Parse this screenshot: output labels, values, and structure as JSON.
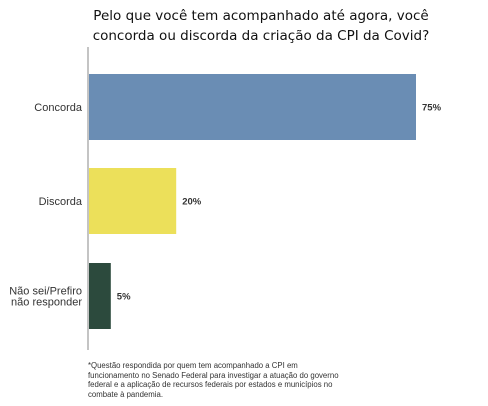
{
  "chart_data": {
    "type": "bar",
    "orientation": "horizontal",
    "title_lines": [
      "Pelo que você tem acompanhado até agora, você",
      "concorda ou discorda da criação da CPI da Covid?"
    ],
    "categories": [
      [
        "Concorda"
      ],
      [
        "Discorda"
      ],
      [
        "Não sei/Prefiro",
        "não responder"
      ]
    ],
    "values": [
      75,
      20,
      5
    ],
    "value_labels": [
      "75%",
      "20%",
      "5%"
    ],
    "colors": [
      "#6a8db4",
      "#ece05a",
      "#2c4a3d"
    ],
    "xlim": [
      0,
      75
    ],
    "grid": false,
    "legend": "none"
  },
  "footnote": "*Questão respondida por quem tem acompanhado a CPI em funcionamento no Senado Federal para investigar a atuação do governo federal e a aplicação de recursos federais por estados e municípios no combate à pandemia."
}
